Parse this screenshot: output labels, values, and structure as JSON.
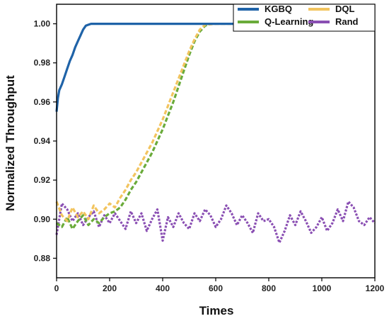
{
  "chart_data": {
    "type": "line",
    "xlabel": "Times",
    "ylabel": "Normalized Throughput",
    "xlim": [
      0,
      1200
    ],
    "ylim": [
      0.87,
      1.01
    ],
    "x_ticks": [
      0,
      200,
      400,
      600,
      800,
      1000,
      1200
    ],
    "y_ticks": [
      0.88,
      0.9,
      0.92,
      0.94,
      0.96,
      0.98,
      1.0
    ],
    "y_tick_labels": [
      "0.88",
      "0.90",
      "0.92",
      "0.94",
      "0.96",
      "0.98",
      "1.00"
    ],
    "grid": false,
    "legend": {
      "placement": "top-right",
      "entries": [
        "KGBQ",
        "DQL",
        "Q-Learning",
        "Rand"
      ]
    },
    "series": [
      {
        "name": "KGBQ",
        "color": "#1f63a8",
        "style": "solid",
        "x": [
          0,
          5,
          10,
          20,
          30,
          40,
          50,
          60,
          70,
          80,
          90,
          100,
          110,
          120,
          130,
          150,
          200,
          300,
          400,
          500,
          600,
          700,
          800,
          900,
          1000,
          1100,
          1200
        ],
        "y": [
          0.955,
          0.962,
          0.966,
          0.969,
          0.973,
          0.977,
          0.981,
          0.984,
          0.988,
          0.991,
          0.994,
          0.997,
          0.999,
          0.9995,
          1.0,
          1.0,
          1.0,
          1.0,
          1.0,
          1.0,
          1.0,
          1.0,
          1.0,
          1.0,
          1.0,
          1.0,
          1.0
        ]
      },
      {
        "name": "DQL",
        "color": "#f2c45e",
        "style": "dashed",
        "x": [
          0,
          20,
          40,
          60,
          80,
          100,
          120,
          140,
          160,
          180,
          200,
          220,
          240,
          260,
          280,
          300,
          320,
          340,
          360,
          380,
          400,
          420,
          440,
          460,
          480,
          500,
          520,
          540,
          560,
          600,
          700,
          800,
          900,
          1000,
          1100,
          1200
        ],
        "y": [
          0.909,
          0.902,
          0.899,
          0.906,
          0.901,
          0.904,
          0.9,
          0.907,
          0.903,
          0.905,
          0.908,
          0.906,
          0.911,
          0.915,
          0.92,
          0.924,
          0.929,
          0.934,
          0.939,
          0.945,
          0.951,
          0.958,
          0.965,
          0.972,
          0.979,
          0.986,
          0.992,
          0.997,
          0.9995,
          1.0,
          1.0,
          1.0,
          1.0,
          1.0,
          1.0,
          1.0
        ]
      },
      {
        "name": "Q-Learning",
        "color": "#6aab3a",
        "style": "dashed",
        "x": [
          0,
          20,
          40,
          60,
          80,
          100,
          120,
          140,
          160,
          180,
          200,
          220,
          240,
          260,
          280,
          300,
          320,
          340,
          360,
          380,
          400,
          420,
          440,
          460,
          480,
          500,
          520,
          540,
          560,
          580
        ],
        "y": [
          0.898,
          0.896,
          0.901,
          0.895,
          0.899,
          0.902,
          0.897,
          0.9,
          0.898,
          0.901,
          0.903,
          0.904,
          0.906,
          0.91,
          0.915,
          0.919,
          0.924,
          0.929,
          0.934,
          0.94,
          0.946,
          0.953,
          0.96,
          0.968,
          0.976,
          0.984,
          0.991,
          0.996,
          0.999,
          1.0
        ]
      },
      {
        "name": "Rand",
        "color": "#8a4fb3",
        "style": "dotted",
        "x": [
          0,
          20,
          40,
          60,
          80,
          100,
          120,
          140,
          160,
          180,
          200,
          220,
          240,
          260,
          280,
          300,
          320,
          340,
          360,
          380,
          400,
          420,
          440,
          460,
          480,
          500,
          520,
          540,
          560,
          580,
          600,
          620,
          640,
          660,
          680,
          700,
          720,
          740,
          760,
          780,
          800,
          820,
          840,
          860,
          880,
          900,
          920,
          940,
          960,
          980,
          1000,
          1020,
          1040,
          1060,
          1080,
          1100,
          1120,
          1140,
          1160,
          1180,
          1200
        ],
        "y": [
          0.892,
          0.908,
          0.905,
          0.899,
          0.903,
          0.897,
          0.901,
          0.904,
          0.896,
          0.902,
          0.898,
          0.903,
          0.899,
          0.895,
          0.904,
          0.898,
          0.903,
          0.894,
          0.9,
          0.905,
          0.889,
          0.901,
          0.896,
          0.903,
          0.898,
          0.895,
          0.903,
          0.899,
          0.905,
          0.902,
          0.896,
          0.9,
          0.907,
          0.903,
          0.897,
          0.902,
          0.898,
          0.893,
          0.903,
          0.899,
          0.9,
          0.896,
          0.888,
          0.894,
          0.902,
          0.897,
          0.904,
          0.899,
          0.893,
          0.896,
          0.901,
          0.894,
          0.898,
          0.905,
          0.899,
          0.909,
          0.906,
          0.899,
          0.897,
          0.901,
          0.898
        ]
      }
    ]
  }
}
